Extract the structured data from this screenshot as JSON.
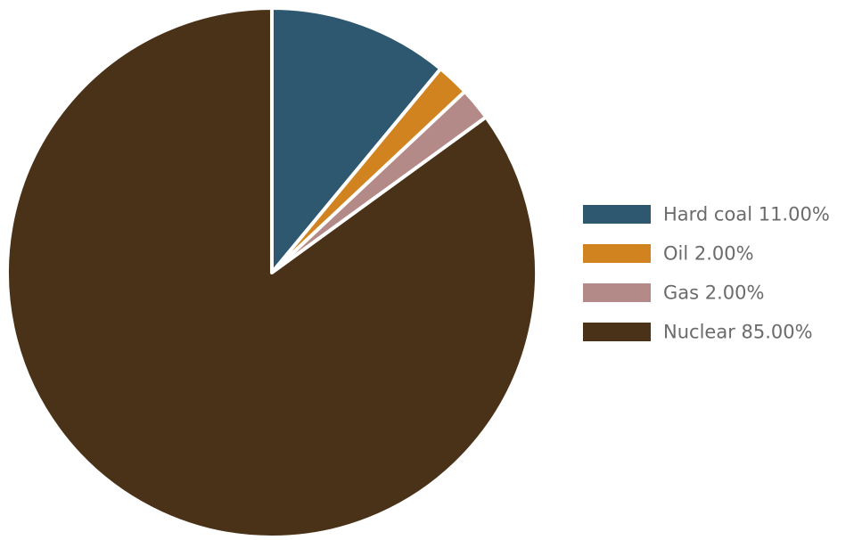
{
  "chart_data": {
    "type": "pie",
    "title": "",
    "start_angle_deg": -90,
    "direction": "clockwise",
    "legend_position": "right",
    "slices": [
      {
        "label": "Hard coal",
        "value": 11.0,
        "display": "Hard coal 11.00%",
        "color": "#2e5870"
      },
      {
        "label": "Oil",
        "value": 2.0,
        "display": "Oil 2.00%",
        "color": "#d0831e"
      },
      {
        "label": "Gas",
        "value": 2.0,
        "display": "Gas 2.00%",
        "color": "#b48a88"
      },
      {
        "label": "Nuclear",
        "value": 85.0,
        "display": "Nuclear 85.00%",
        "color": "#4a3218"
      }
    ],
    "slice_border_color": "#ffffff"
  }
}
